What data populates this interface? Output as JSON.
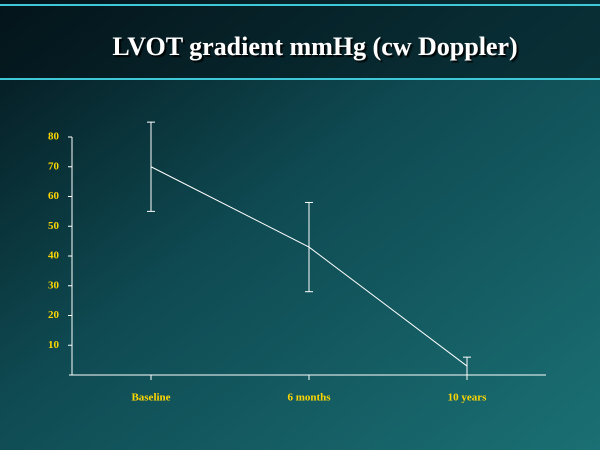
{
  "chart_data": {
    "type": "line",
    "title": "LVOT gradient mmHg (cw Doppler)",
    "categories": [
      "Baseline",
      "6 months",
      "10 years"
    ],
    "values": [
      70,
      43,
      3
    ],
    "errors": [
      15,
      15,
      3
    ],
    "color": "#ffffff",
    "ylim": [
      0,
      80
    ],
    "yticks": [
      10,
      20,
      30,
      40,
      50,
      60,
      70,
      80
    ]
  }
}
